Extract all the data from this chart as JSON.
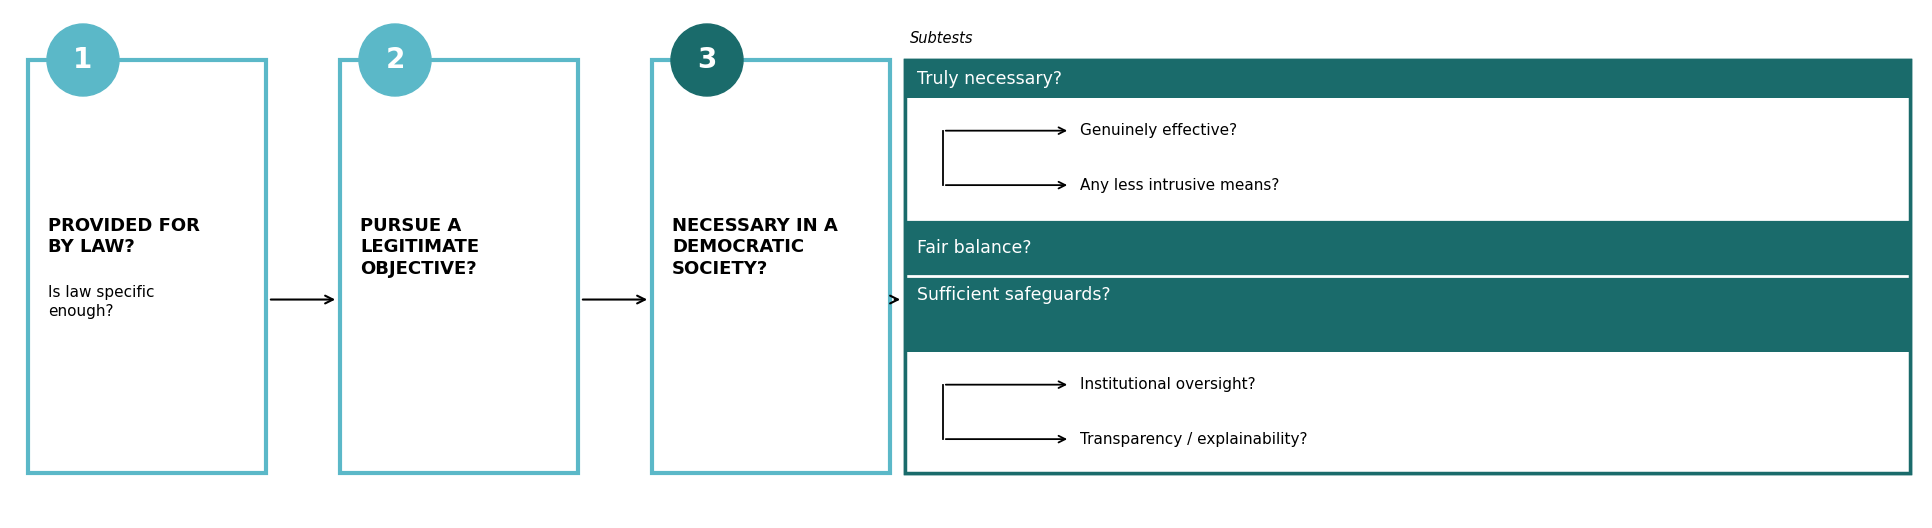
{
  "bg_color": "#ffffff",
  "teal_light": "#5bb8c8",
  "teal_dark": "#1a6b6b",
  "box1_text_bold": "PROVIDED FOR\nBY LAW?",
  "box1_text_normal": "Is law specific\nenough?",
  "box2_text_bold": "PURSUE A\nLEGITIMATE\nOBJECTIVE?",
  "box3_text_bold": "NECESSARY IN A\nDEMOCRATIC\nSOCIETY?",
  "subtests_label": "Subtests",
  "subtest1_header": "Truly necessary?",
  "subtest1_items": [
    "Genuinely effective?",
    "Any less intrusive means?"
  ],
  "subtest2_header": "Fair balance?",
  "subtest3_header": "Sufficient safeguards?",
  "subtest3_items": [
    "Institutional oversight?",
    "Transparency / explainability?"
  ],
  "fig_width": 19.32,
  "fig_height": 5.28
}
